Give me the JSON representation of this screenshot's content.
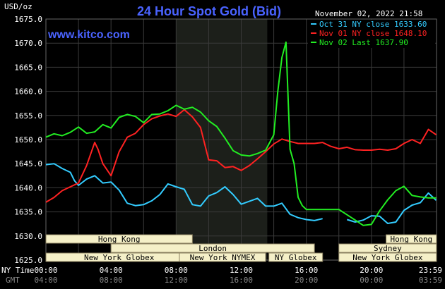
{
  "chart_data": {
    "type": "line",
    "title": "24 Hour Spot Gold (Bid)",
    "watermark": "www.kitco.com",
    "timestamp": "November 02, 2022 21:58",
    "y_unit": "USD/oz",
    "ylim": [
      1625.0,
      1675.0
    ],
    "y_ticks": [
      "1675.0",
      "1670.0",
      "1665.0",
      "1660.0",
      "1655.0",
      "1650.0",
      "1645.0",
      "1640.0",
      "1635.0",
      "1630.0",
      "1625.0"
    ],
    "x_row1_label": "NY Time",
    "x_row2_label": "GMT",
    "x_ticks_ny": [
      "00:00",
      "04:00",
      "08:00",
      "12:00",
      "16:00",
      "20:00",
      "23:59"
    ],
    "x_ticks_gmt": [
      "04:00",
      "08:00",
      "12:00",
      "16:00",
      "20:00",
      "00:00",
      "03:59"
    ],
    "x_range_hours": [
      0,
      24
    ],
    "grid": true,
    "legend_position": "top-right",
    "colors": {
      "background": "#000000",
      "grid": "#3a3a3a",
      "shade": "#1c1f1a",
      "session_bar": "#f5f0c8",
      "title": "#4a63ff"
    },
    "series": [
      {
        "name": "Oct 31 NY close 1633.60",
        "color": "#33ccff",
        "x": [
          0,
          0.5,
          1,
          1.5,
          1.75,
          2,
          2.5,
          3,
          3.5,
          4,
          4.5,
          5,
          5.5,
          6,
          6.5,
          7,
          7.5,
          8,
          8.5,
          9,
          9.5,
          10,
          10.5,
          11,
          11.5,
          12,
          12.5,
          13,
          13.5,
          14,
          14.5,
          15,
          15.5,
          16,
          16.5,
          17,
          17.5,
          18,
          18.5,
          19,
          19.5,
          20,
          20.5,
          21,
          21.5,
          22,
          22.5,
          23,
          23.5,
          23.98
        ],
        "y": [
          1644.8,
          1645,
          1644,
          1643.2,
          1641.5,
          1640.5,
          1641.8,
          1642.5,
          1641,
          1641.2,
          1639.5,
          1636.8,
          1636.3,
          1636.5,
          1637.3,
          1638.6,
          1640.8,
          1640.2,
          1639.7,
          1636.5,
          1636.2,
          1638.3,
          1639,
          1640.2,
          1638.6,
          1636.6,
          1637.2,
          1637.8,
          1636.2,
          1636.2,
          1636.8,
          1634.5,
          1633.8,
          1633.4,
          1633.2,
          1633.6,
          null,
          null,
          1633.4,
          1632.9,
          1633.3,
          1634.2,
          1634.1,
          1632.6,
          1632.9,
          1635.3,
          1636.4,
          1636.9,
          1638.9,
          1637.4
        ]
      },
      {
        "name": "Nov 01 NY close 1648.10",
        "color": "#ff2222",
        "x": [
          0,
          0.5,
          1,
          1.5,
          2,
          2.5,
          3,
          3.2,
          3.5,
          4,
          4.5,
          5,
          5.5,
          6,
          6.5,
          7,
          7.5,
          8,
          8.5,
          9,
          9.5,
          10,
          10.5,
          11,
          11.5,
          12,
          12.5,
          13,
          13.5,
          14,
          14.5,
          15,
          15.5,
          16,
          16.5,
          17,
          17.5,
          18,
          18.5,
          19,
          19.5,
          20,
          20.5,
          21,
          21.5,
          22,
          22.5,
          23,
          23.5,
          23.98
        ],
        "y": [
          1637,
          1638,
          1639.4,
          1640.2,
          1641,
          1644.6,
          1649.4,
          1648,
          1645,
          1642.5,
          1647.5,
          1650.5,
          1651.3,
          1653.1,
          1654.3,
          1654.9,
          1655.3,
          1654.8,
          1656.2,
          1654.7,
          1652.5,
          1645.8,
          1645.6,
          1644.2,
          1644.4,
          1643.6,
          1644.6,
          1646,
          1647.5,
          1649.1,
          1650.1,
          1649.6,
          1649.2,
          1649.2,
          1649.2,
          1649.4,
          1648.6,
          1648.1,
          1648.4,
          1647.9,
          1647.8,
          1647.8,
          1648,
          1647.8,
          1648.1,
          1649.2,
          1650,
          1649.2,
          1652.1,
          1651
        ]
      },
      {
        "name": "Nov 02 Last 1637.90",
        "color": "#22ee22",
        "x": [
          0,
          0.5,
          1,
          1.5,
          2,
          2.5,
          3,
          3.5,
          4,
          4.5,
          5,
          5.5,
          6,
          6.5,
          7,
          7.5,
          8,
          8.5,
          9,
          9.5,
          10,
          10.5,
          11,
          11.5,
          12,
          12.5,
          13,
          13.5,
          14,
          14.25,
          14.5,
          14.75,
          15,
          15.25,
          15.5,
          15.75,
          16,
          16.5,
          17,
          17.5,
          18,
          18.5,
          19,
          19.5,
          20,
          20.5,
          21,
          21.5,
          22,
          22.5,
          23,
          23.5,
          23.98
        ],
        "y": [
          1650.5,
          1651.2,
          1650.8,
          1651.5,
          1652.6,
          1651.3,
          1651.6,
          1653.1,
          1652.4,
          1654.6,
          1655.2,
          1654.8,
          1653.5,
          1655.2,
          1655.3,
          1656,
          1657.1,
          1656.3,
          1656.7,
          1655.7,
          1653.9,
          1652.7,
          1650.3,
          1647.7,
          1646.8,
          1646.6,
          1647.1,
          1647.8,
          1651,
          1660,
          1667,
          1670.2,
          1648,
          1645,
          1638,
          1636.3,
          1635.5,
          1635.5,
          1635.5,
          1635.5,
          1635.5,
          1634.4,
          1633.3,
          1632.2,
          1632.4,
          1635.2,
          1637.5,
          1639.4,
          1640.3,
          1638.4,
          1638.1,
          1637.9,
          1637.9
        ]
      }
    ],
    "shaded_hours": [
      8,
      13.6
    ],
    "sessions": [
      {
        "label": "Hong Kong",
        "row": 0,
        "start": 0,
        "end": 9
      },
      {
        "label": "London",
        "row": 1,
        "start": 4,
        "end": 16.5
      },
      {
        "label": "New York Globex",
        "row": 2,
        "start": 0,
        "end": 9
      },
      {
        "label": "New York NYMEX",
        "row": 2,
        "start": 8.2,
        "end": 13.5
      },
      {
        "label": "NY Globex",
        "row": 2,
        "start": 13.7,
        "end": 17
      },
      {
        "label": "Hong Kong",
        "row": 0,
        "start": 20.9,
        "end": 24
      },
      {
        "label": "Sydney",
        "row": 1,
        "start": 18,
        "end": 24
      },
      {
        "label": "New York Globex",
        "row": 2,
        "start": 18,
        "end": 24
      }
    ]
  }
}
